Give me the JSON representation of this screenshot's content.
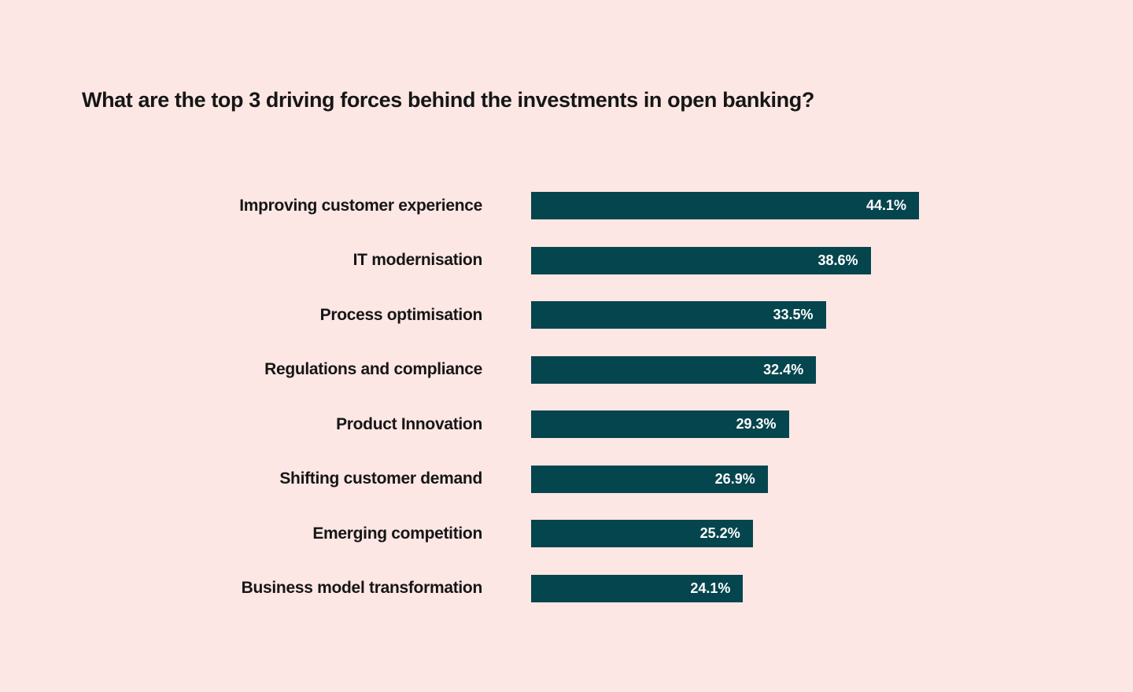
{
  "page": {
    "background": "#FCE7E4"
  },
  "chart_data": {
    "type": "bar",
    "orientation": "horizontal",
    "title": "What are the top 3 driving forces behind the investments in open banking?",
    "categories": [
      "Improving customer experience",
      "IT modernisation",
      "Process optimisation",
      "Regulations and compliance",
      "Product Innovation",
      "Shifting customer demand",
      "Emerging competition",
      "Business model transformation"
    ],
    "values": [
      44.1,
      38.6,
      33.5,
      32.4,
      29.3,
      26.9,
      25.2,
      24.1
    ],
    "value_labels": [
      "44.1%",
      "38.6%",
      "33.5%",
      "32.4%",
      "29.3%",
      "26.9%",
      "25.2%",
      "24.1%"
    ],
    "xlim": [
      0,
      44.1
    ],
    "grid": false,
    "legend": false,
    "value_labels_position": "inside-right",
    "bar_color": "#05454E",
    "value_label_color": "#FFFFFF",
    "category_label_color": "#161616",
    "title_color": "#161616"
  }
}
